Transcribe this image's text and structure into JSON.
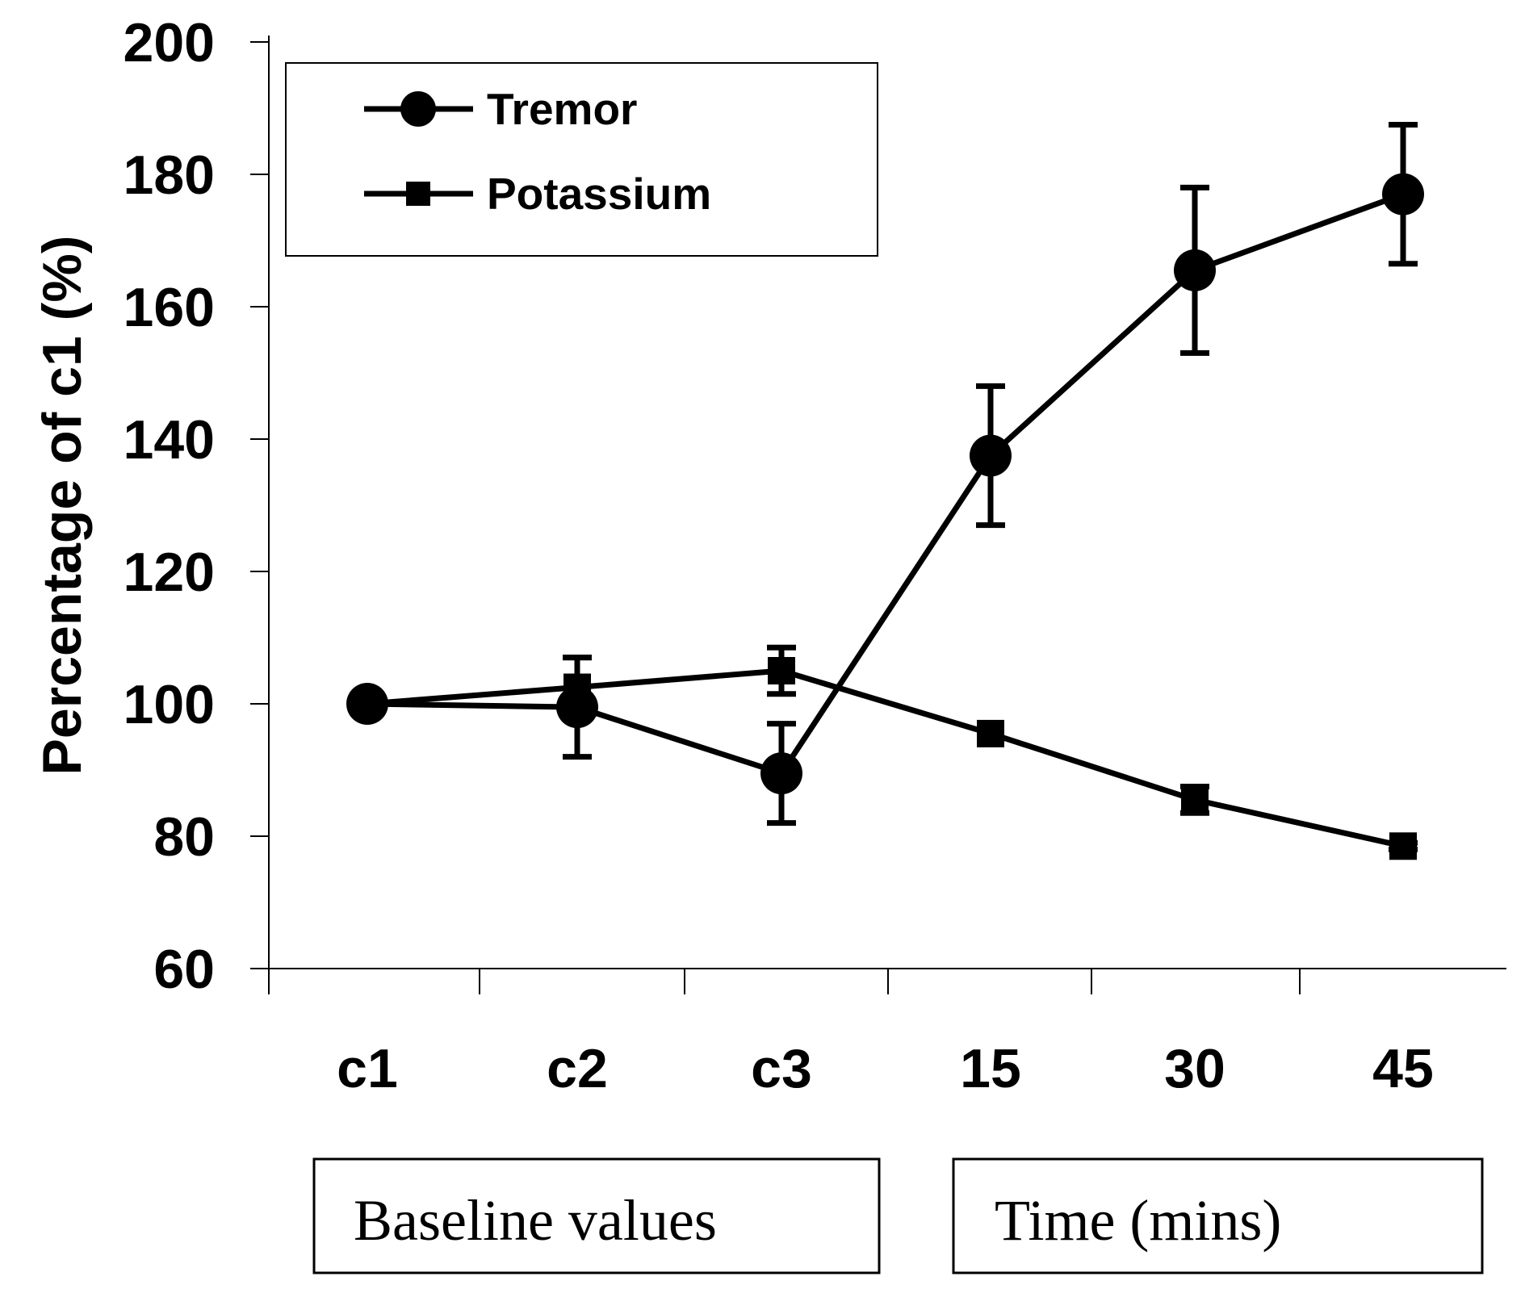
{
  "chart_data": {
    "type": "line",
    "title": "",
    "xlabel": "",
    "ylabel": "Percentage of c1 (%)",
    "categories": [
      "c1",
      "c2",
      "c3",
      "15",
      "30",
      "45"
    ],
    "ylim": [
      60,
      200
    ],
    "yticks": [
      60,
      80,
      100,
      120,
      140,
      160,
      180,
      200
    ],
    "grid": false,
    "legend_position": "top-left",
    "series": [
      {
        "name": "Tremor",
        "marker": "circle",
        "values": [
          100,
          99.5,
          89.5,
          137.5,
          165.5,
          177
        ],
        "error": [
          0,
          7.5,
          7.5,
          10.5,
          12.5,
          10.5
        ]
      },
      {
        "name": "Potassium",
        "marker": "square",
        "values": [
          100,
          102.5,
          105,
          95.5,
          85.5,
          78.5
        ],
        "error": [
          0,
          4.5,
          3.5,
          0,
          2,
          0.5
        ]
      }
    ],
    "groups": [
      {
        "label": "Baseline values"
      },
      {
        "label": "Time (mins)"
      }
    ]
  }
}
